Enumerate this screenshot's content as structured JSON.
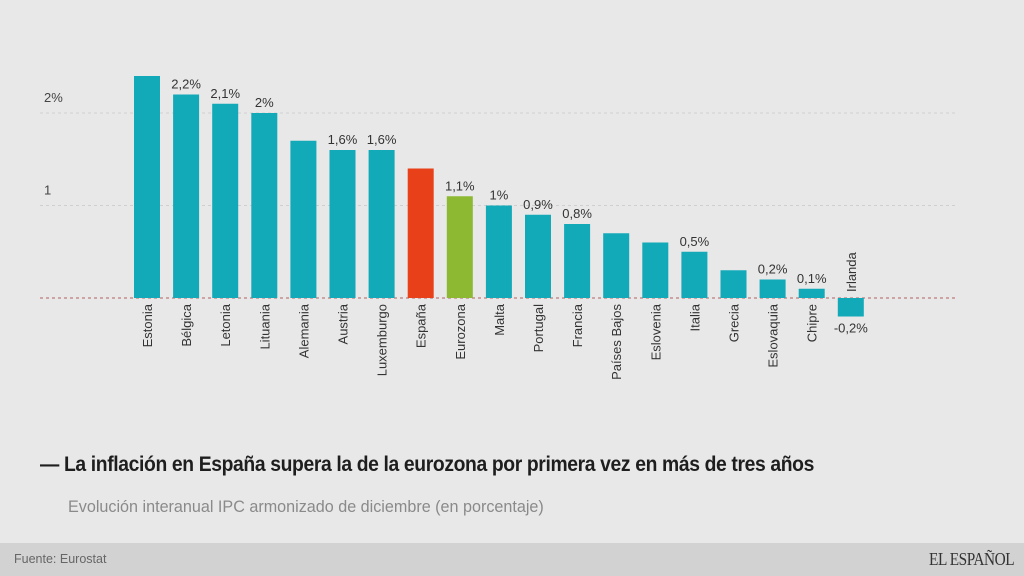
{
  "chart_data": {
    "type": "bar",
    "title": "La inflación en España supera la de la eurozona por primera vez en más de tres años",
    "subtitle": "Evolución interanual IPC armonizado de diciembre (en porcentaje)",
    "xlabel": "",
    "ylabel": "",
    "ylim": [
      -0.2,
      2.4
    ],
    "yticks": [
      {
        "value": 0,
        "label": ""
      },
      {
        "value": 1,
        "label": "1"
      },
      {
        "value": 2,
        "label": "2%"
      }
    ],
    "grid": true,
    "categories": [
      "Estonia",
      "Bélgica",
      "Letonia",
      "Lituania",
      "Alemania",
      "Austria",
      "Luxemburgo",
      "España",
      "Eurozona",
      "Malta",
      "Portugal",
      "Francia",
      "Países Bajos",
      "Eslovenia",
      "Italia",
      "Grecia",
      "Eslovaquia",
      "Chipre",
      "Irlanda"
    ],
    "values": [
      2.4,
      2.2,
      2.1,
      2.0,
      1.7,
      1.6,
      1.6,
      1.4,
      1.1,
      1.0,
      0.9,
      0.8,
      0.7,
      0.6,
      0.5,
      0.3,
      0.2,
      0.1,
      -0.2
    ],
    "data_labels": [
      "",
      "2,2%",
      "2,1%",
      "2%",
      "",
      "1,6%",
      "1,6%",
      "",
      "1,1%",
      "1%",
      "0,9%",
      "0,8%",
      "",
      "",
      "0,5%",
      "",
      "0,2%",
      "0,1%",
      "-0,2%"
    ],
    "colors": {
      "default": "#12a9b9",
      "España": "#e8411a",
      "Eurozona": "#8cb832"
    }
  },
  "header": {
    "title_prefix": "—",
    "title": "La inflación en España supera la de la eurozona por primera vez en más de tres años",
    "subtitle": "Evolución interanual IPC armonizado de diciembre (en porcentaje)"
  },
  "footer": {
    "source": "Fuente: Eurostat",
    "logo": "EL ESPAÑOL"
  }
}
